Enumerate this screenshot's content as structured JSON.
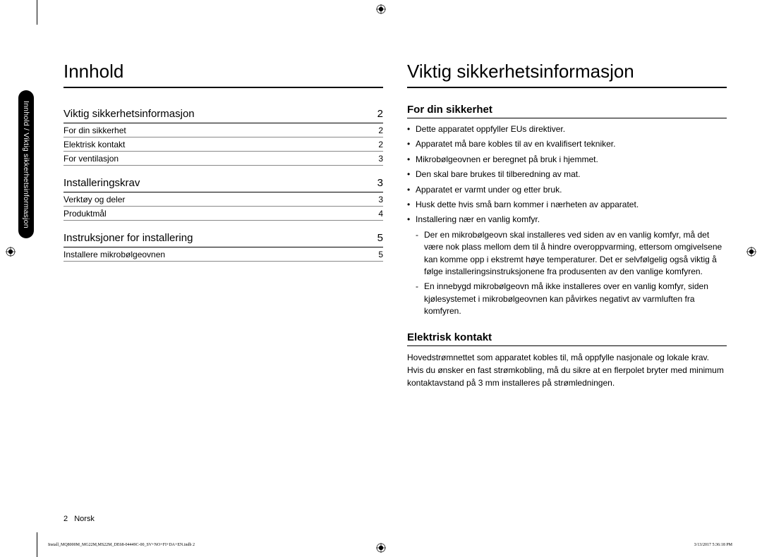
{
  "sidebar_tab": "Innhold / Viktig sikkerhetsinformasjon",
  "left": {
    "heading": "Innhold",
    "toc": [
      {
        "title": "Viktig sikkerhetsinformasjon",
        "page": "2",
        "items": [
          {
            "label": "For din sikkerhet",
            "page": "2"
          },
          {
            "label": "Elektrisk kontakt",
            "page": "2"
          },
          {
            "label": "For ventilasjon",
            "page": "3"
          }
        ]
      },
      {
        "title": "Installeringskrav",
        "page": "3",
        "items": [
          {
            "label": "Verktøy og deler",
            "page": "3"
          },
          {
            "label": "Produktmål",
            "page": "4"
          }
        ]
      },
      {
        "title": "Instruksjoner for installering",
        "page": "5",
        "items": [
          {
            "label": "Installere mikrobølgeovnen",
            "page": "5"
          }
        ]
      }
    ]
  },
  "right": {
    "heading": "Viktig sikkerhetsinformasjon",
    "sec1_title": "For din sikkerhet",
    "bullets": [
      "Dette apparatet oppfyller EUs direktiver.",
      "Apparatet må bare kobles til av en kvalifisert tekniker.",
      "Mikrobølgeovnen er beregnet på bruk i hjemmet.",
      "Den skal bare brukes til tilberedning av mat.",
      "Apparatet er varmt under og etter bruk.",
      "Husk dette hvis små barn kommer i nærheten av apparatet.",
      "Installering nær en vanlig komfyr."
    ],
    "subbullets": [
      "Der en mikrobølgeovn skal installeres ved siden av en vanlig komfyr, må det være nok plass mellom dem til å hindre overoppvarming, ettersom omgivelsene kan komme opp i ekstremt høye temperaturer. Det er selvfølgelig også viktig å følge installeringsinstruksjonene fra produsenten av den vanlige komfyren.",
      "En innebygd mikrobølgeovn må ikke installeres over en vanlig komfyr, siden kjølesystemet i mikrobølgeovnen kan påvirkes negativt av varmluften fra komfyren."
    ],
    "sec2_title": "Elektrisk kontakt",
    "sec2_body": "Hovedstrømnettet som apparatet kobles til, må oppfylle nasjonale og lokale krav. Hvis du ønsker en fast strømkobling, må du sikre at en flerpolet bryter med minimum kontaktavstand på 3 mm installeres på strømledningen."
  },
  "footer": {
    "page_number": "2",
    "lang": "Norsk"
  },
  "print_meta": {
    "left": "Install_MQ8000M_MG22M,MS22M_DE68-04449C-00_SV+NO+FI+DA+EN.indb   2",
    "right": "3/13/2017   5:36:18 PM"
  }
}
